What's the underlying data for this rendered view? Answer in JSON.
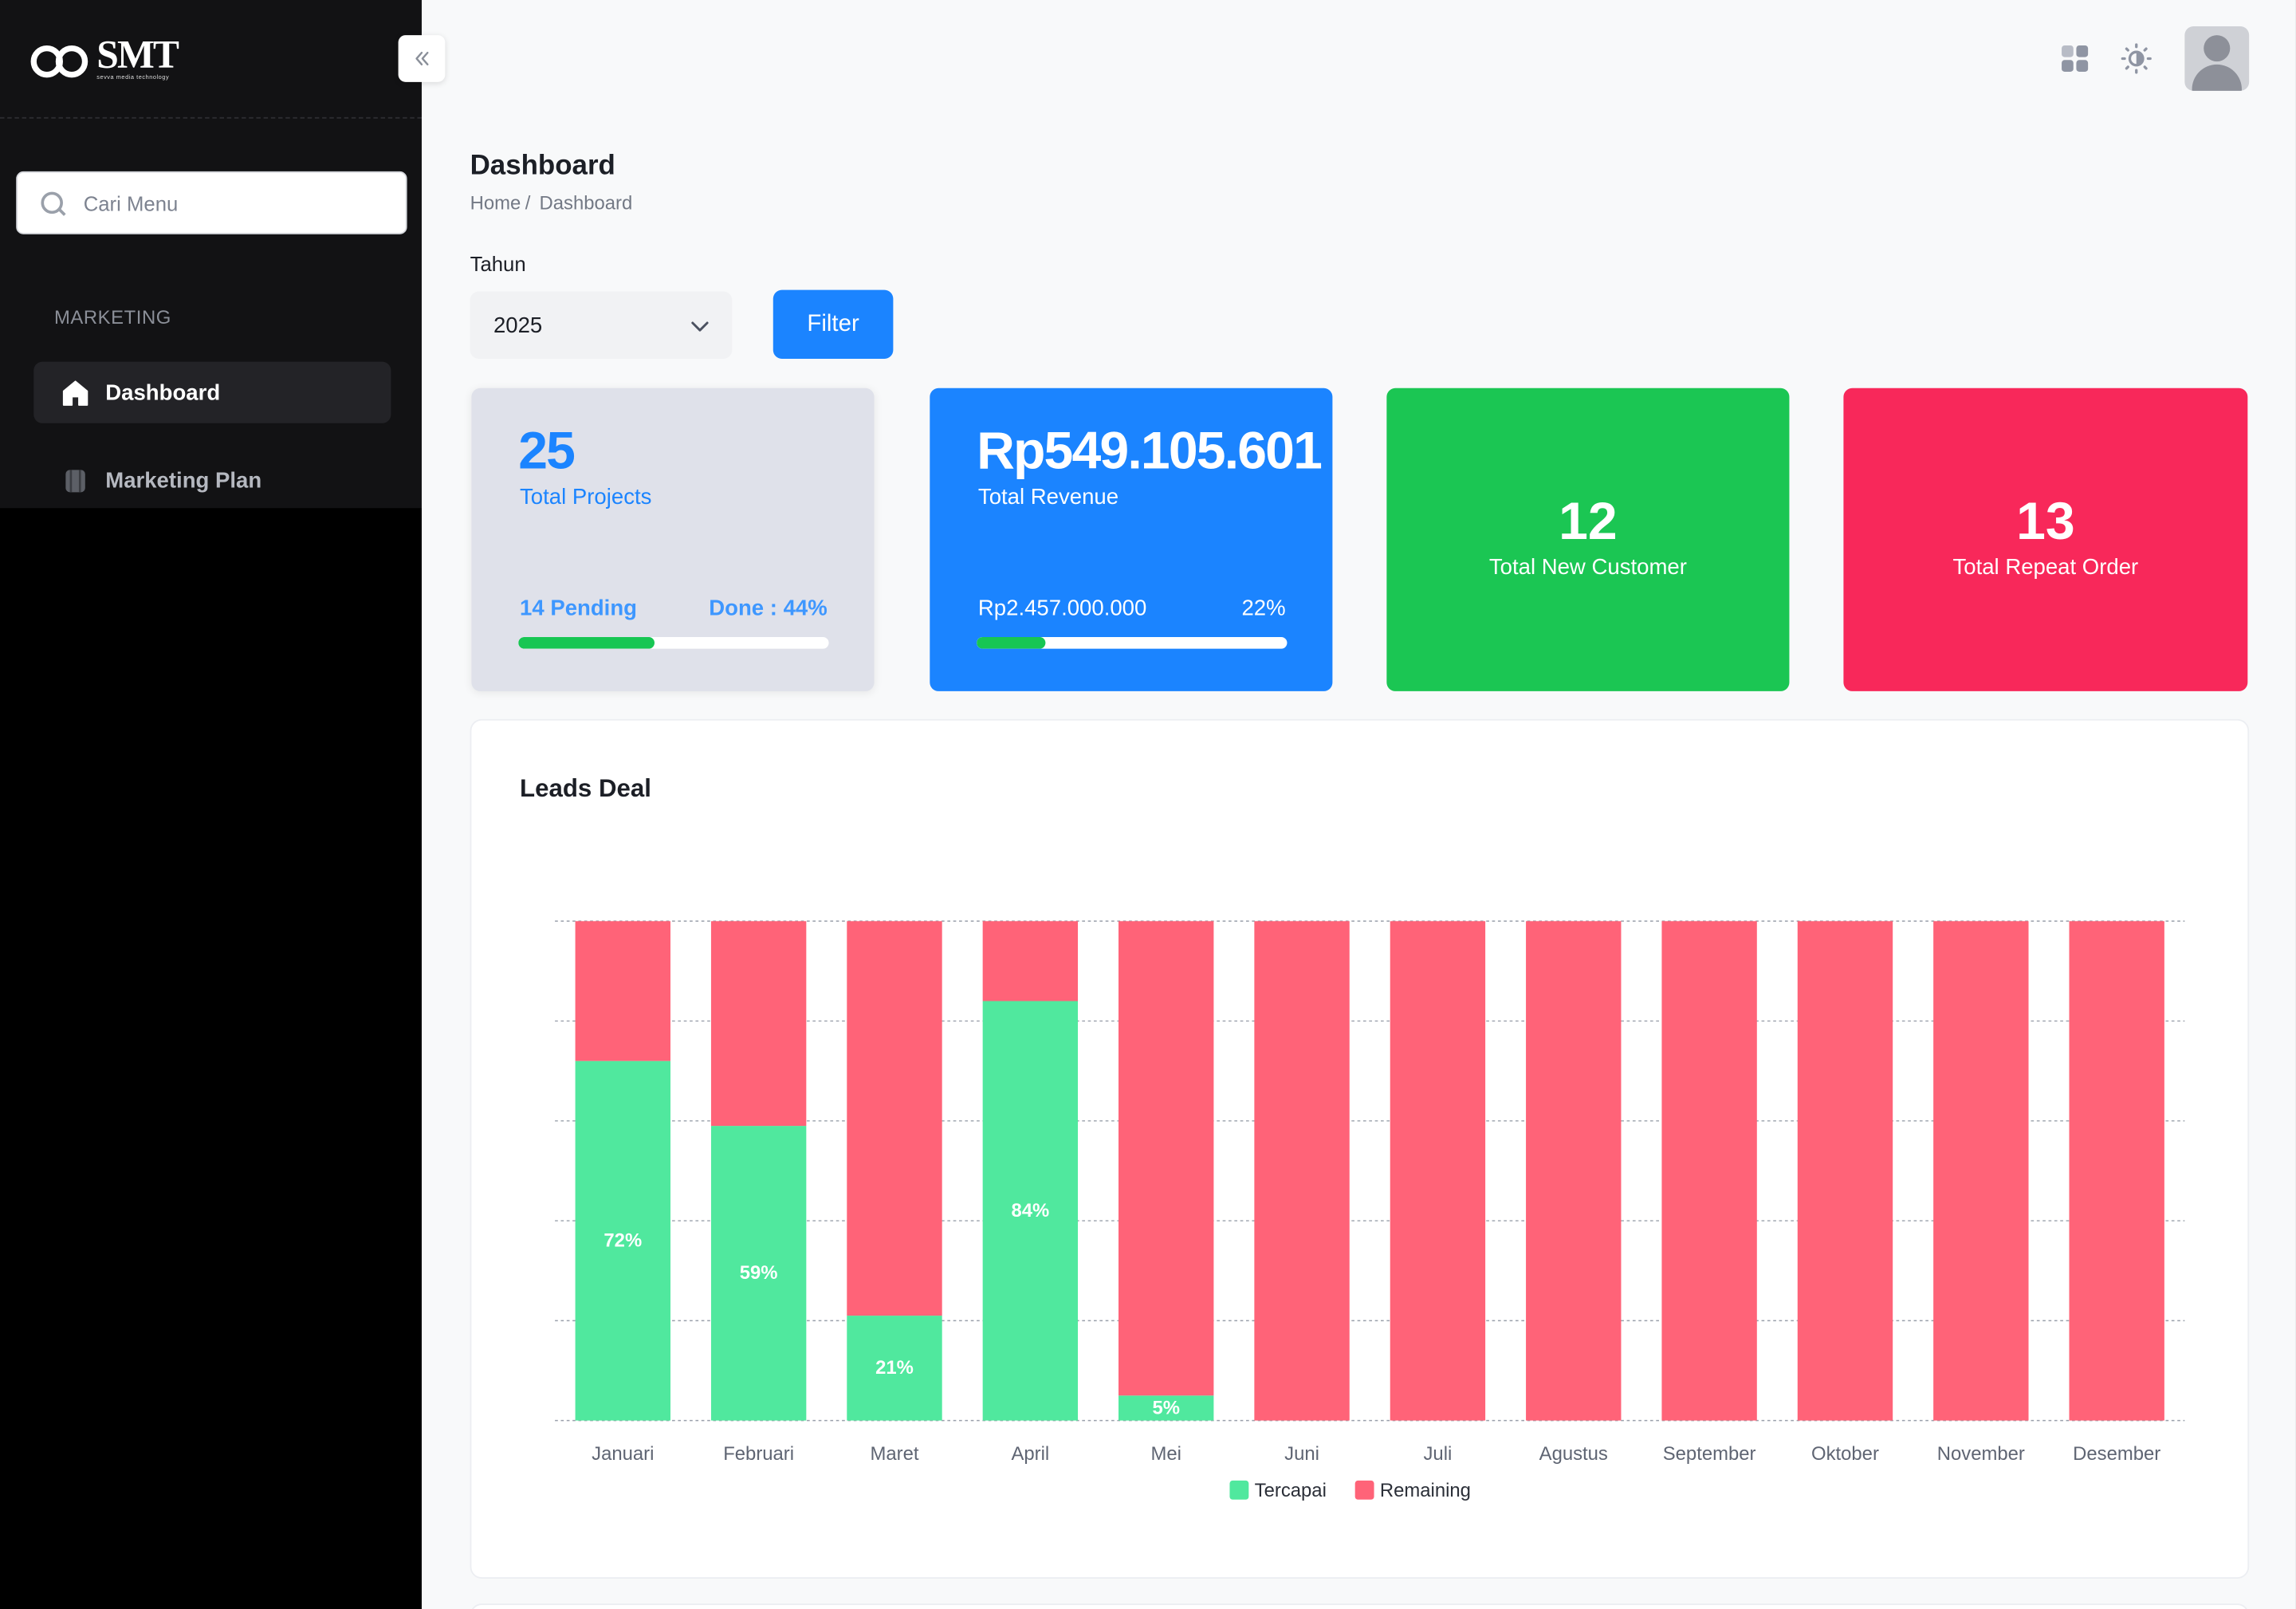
{
  "sidebar": {
    "logo": {
      "title": "SMT",
      "subtitle": "sevva media technology"
    },
    "search": {
      "placeholder": "Cari Menu"
    },
    "section_label": "MARKETING",
    "items": [
      {
        "label": "Dashboard",
        "icon": "home-icon"
      },
      {
        "label": "Marketing Plan",
        "icon": "binder-icon"
      }
    ]
  },
  "page": {
    "title": "Dashboard",
    "breadcrumb": [
      "Home",
      "/",
      "Dashboard"
    ],
    "year_label": "Tahun",
    "year_value": "2025",
    "filter_label": "Filter"
  },
  "cards": {
    "projects": {
      "value": "25",
      "label": "Total Projects",
      "pending": "14 Pending",
      "done": "Done : 44%",
      "progress": 0.44
    },
    "revenue": {
      "value": "Rp549.105.601",
      "label": "Total Revenue",
      "target": "Rp2.457.000.000",
      "percent": "22%",
      "progress": 0.22
    },
    "customer": {
      "value": "12",
      "label": "Total New Customer"
    },
    "repeat": {
      "value": "13",
      "label": "Total Repeat Order"
    }
  },
  "colors": {
    "primary": "#1b84ff",
    "success": "#1bc653",
    "danger": "#f8285a",
    "tercapai": "#50e89e",
    "remaining": "#ff6378"
  },
  "chart_data": {
    "type": "bar",
    "stacked": true,
    "title": "Leads Deal",
    "categories": [
      "Januari",
      "Februari",
      "Maret",
      "April",
      "Mei",
      "Juni",
      "Juli",
      "Agustus",
      "September",
      "Oktober",
      "November",
      "Desember"
    ],
    "series": [
      {
        "name": "Tercapai",
        "values": [
          72,
          59,
          21,
          84,
          5,
          0,
          0,
          0,
          0,
          0,
          0,
          0
        ]
      },
      {
        "name": "Remaining",
        "values": [
          28,
          41,
          79,
          16,
          95,
          100,
          100,
          100,
          100,
          100,
          100,
          100
        ]
      }
    ],
    "data_labels": [
      "72%",
      "59%",
      "21%",
      "84%",
      "5%",
      "",
      "",
      "",
      "",
      "",
      "",
      ""
    ],
    "ylim": [
      0,
      100
    ],
    "grid": true,
    "legend": "bottom-center"
  }
}
